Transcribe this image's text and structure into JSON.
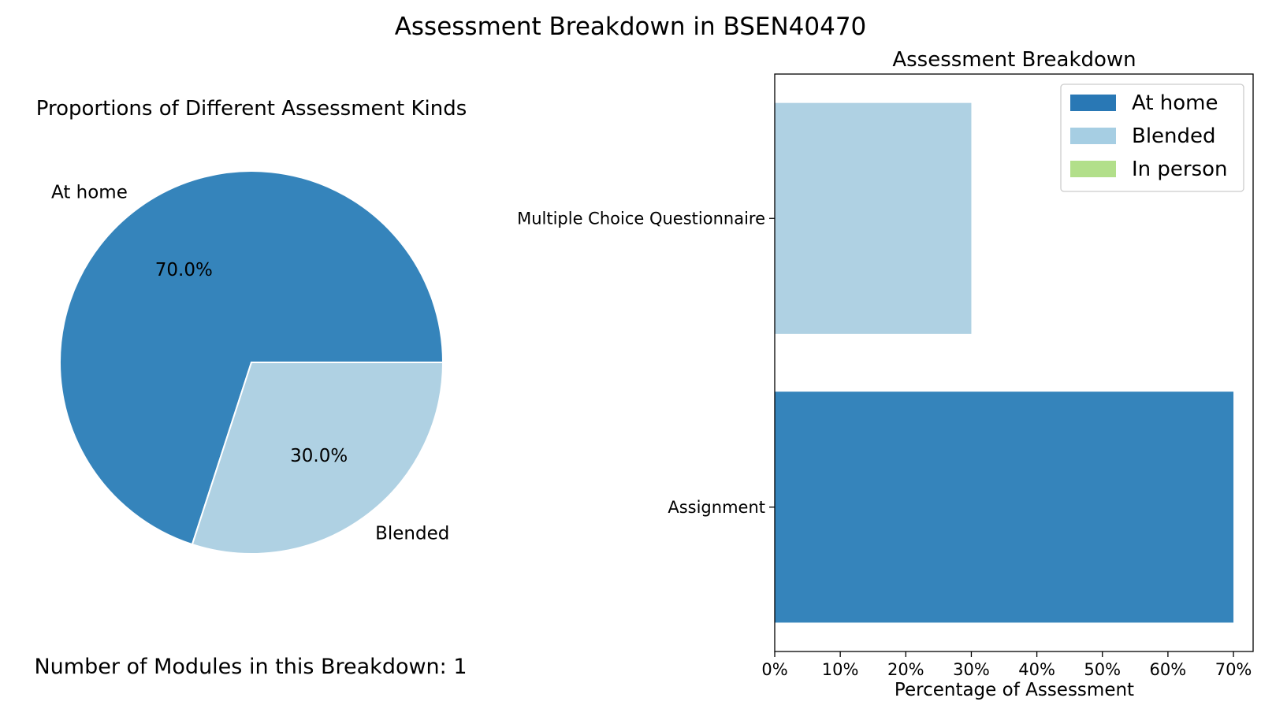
{
  "figure": {
    "suptitle": "Assessment Breakdown in BSEN40470",
    "footer": "Number of Modules in this Breakdown: 1"
  },
  "chart_data": [
    {
      "type": "pie",
      "title": "Proportions of Different Assessment Kinds",
      "slices": [
        {
          "label": "At home",
          "value": 70.0,
          "pct_label": "70.0%",
          "color": "#3584bb"
        },
        {
          "label": "Blended",
          "value": 30.0,
          "pct_label": "30.0%",
          "color": "#afd1e3"
        }
      ]
    },
    {
      "type": "bar",
      "orientation": "horizontal",
      "title": "Assessment Breakdown",
      "xlabel": "Percentage of Assessment",
      "ylabel": "",
      "categories": [
        "Multiple Choice Questionnaire",
        "Assignment"
      ],
      "xlim": [
        0,
        73
      ],
      "xticks": [
        0,
        10,
        20,
        30,
        40,
        50,
        60,
        70
      ],
      "xtick_labels": [
        "0%",
        "10%",
        "20%",
        "30%",
        "40%",
        "50%",
        "60%",
        "70%"
      ],
      "series": [
        {
          "name": "At home",
          "color": "#3584bb",
          "values": [
            0,
            70
          ]
        },
        {
          "name": "Blended",
          "color": "#afd1e3",
          "values": [
            30,
            0
          ]
        },
        {
          "name": "In person",
          "color": "#b2df8a",
          "values": [
            0,
            0
          ]
        }
      ],
      "legend": {
        "position": "top-right",
        "colors": [
          "#2978b5",
          "#a6cee3",
          "#b2df8a"
        ]
      }
    }
  ]
}
